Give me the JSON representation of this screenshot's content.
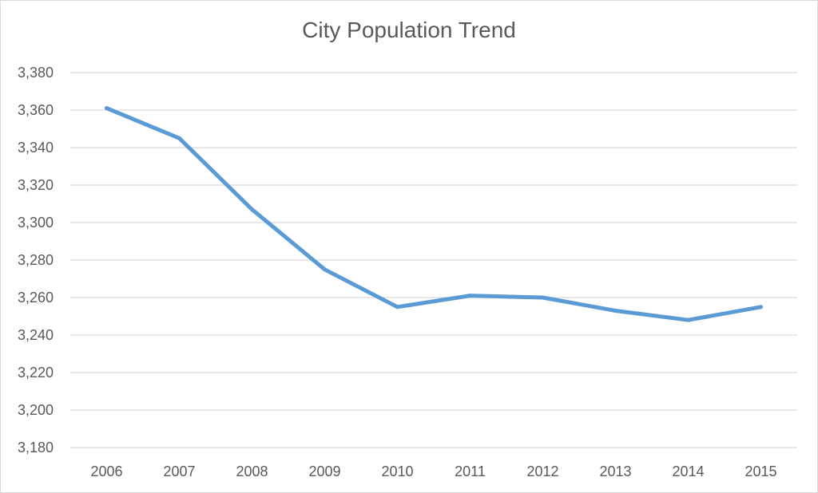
{
  "chart_data": {
    "type": "line",
    "title": "City Population Trend",
    "xlabel": "",
    "ylabel": "",
    "categories": [
      "2006",
      "2007",
      "2008",
      "2009",
      "2010",
      "2011",
      "2012",
      "2013",
      "2014",
      "2015"
    ],
    "series": [
      {
        "values": [
          3361,
          3345,
          3307,
          3275,
          3255,
          3261,
          3260,
          3253,
          3248,
          3255
        ],
        "color": "#5b9bd5"
      }
    ],
    "ylim": [
      3180,
      3380
    ],
    "yticks": [
      3180,
      3200,
      3220,
      3240,
      3260,
      3280,
      3300,
      3320,
      3340,
      3360,
      3380
    ],
    "ytick_labels": [
      "3,180",
      "3,200",
      "3,220",
      "3,240",
      "3,260",
      "3,280",
      "3,300",
      "3,320",
      "3,340",
      "3,360",
      "3,380"
    ],
    "grid": true,
    "legend": "none",
    "gridline_color": "#d9d9d9",
    "text_color": "#595959"
  }
}
